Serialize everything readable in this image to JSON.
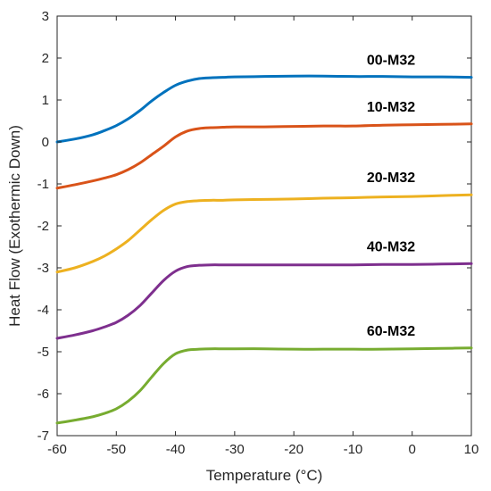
{
  "chart_data": {
    "type": "line",
    "title": "",
    "xlabel": "Temperature (°C)",
    "ylabel": "Heat Flow (Exothermic Down)",
    "xlim": [
      -60,
      10
    ],
    "ylim": [
      -7,
      3
    ],
    "xticks": [
      -60,
      -50,
      -40,
      -30,
      -20,
      -10,
      0,
      10
    ],
    "yticks": [
      -7,
      -6,
      -5,
      -4,
      -3,
      -2,
      -1,
      0,
      1,
      2,
      3
    ],
    "grid": false,
    "legend": "none (series labeled directly on plot)",
    "series": [
      {
        "name": "00-M32",
        "color": "#0072BD",
        "x": [
          -60,
          -57,
          -54,
          -52,
          -50,
          -48,
          -46,
          -44,
          -42,
          -40,
          -38,
          -36,
          -34,
          -32,
          -30,
          -25,
          -20,
          -15,
          -10,
          -5,
          0,
          5,
          10
        ],
        "y": [
          0.0,
          0.07,
          0.17,
          0.27,
          0.39,
          0.55,
          0.75,
          0.98,
          1.18,
          1.35,
          1.45,
          1.51,
          1.53,
          1.54,
          1.55,
          1.56,
          1.57,
          1.57,
          1.56,
          1.56,
          1.55,
          1.55,
          1.54
        ]
      },
      {
        "name": "10-M32",
        "color": "#D95319",
        "x": [
          -60,
          -57,
          -54,
          -52,
          -50,
          -48,
          -46,
          -44,
          -42,
          -40,
          -38,
          -36,
          -34,
          -32,
          -30,
          -25,
          -20,
          -15,
          -10,
          -5,
          0,
          5,
          10
        ],
        "y": [
          -1.1,
          -1.02,
          -0.93,
          -0.86,
          -0.78,
          -0.66,
          -0.5,
          -0.3,
          -0.1,
          0.12,
          0.26,
          0.32,
          0.34,
          0.35,
          0.36,
          0.36,
          0.37,
          0.38,
          0.38,
          0.4,
          0.41,
          0.42,
          0.43
        ]
      },
      {
        "name": "20-M32",
        "color": "#EDB120",
        "x": [
          -60,
          -57,
          -54,
          -52,
          -50,
          -48,
          -46,
          -44,
          -42,
          -40,
          -38,
          -36,
          -34,
          -32,
          -30,
          -25,
          -20,
          -15,
          -10,
          -5,
          0,
          5,
          10
        ],
        "y": [
          -3.1,
          -3.0,
          -2.85,
          -2.72,
          -2.55,
          -2.35,
          -2.1,
          -1.85,
          -1.63,
          -1.48,
          -1.42,
          -1.4,
          -1.39,
          -1.39,
          -1.38,
          -1.37,
          -1.36,
          -1.34,
          -1.33,
          -1.31,
          -1.3,
          -1.28,
          -1.26
        ]
      },
      {
        "name": "40-M32",
        "color": "#7E2F8E",
        "x": [
          -60,
          -57,
          -54,
          -52,
          -50,
          -48,
          -46,
          -44,
          -42,
          -40,
          -38,
          -36,
          -34,
          -32,
          -30,
          -25,
          -20,
          -15,
          -10,
          -5,
          0,
          5,
          10
        ],
        "y": [
          -4.68,
          -4.6,
          -4.5,
          -4.41,
          -4.3,
          -4.13,
          -3.9,
          -3.6,
          -3.3,
          -3.08,
          -2.97,
          -2.94,
          -2.93,
          -2.93,
          -2.93,
          -2.93,
          -2.93,
          -2.93,
          -2.93,
          -2.92,
          -2.92,
          -2.91,
          -2.9
        ]
      },
      {
        "name": "60-M32",
        "color": "#77AC30",
        "x": [
          -60,
          -57,
          -54,
          -52,
          -50,
          -48,
          -46,
          -44,
          -42,
          -40,
          -38,
          -36,
          -34,
          -32,
          -30,
          -25,
          -20,
          -15,
          -10,
          -5,
          0,
          5,
          10
        ],
        "y": [
          -6.7,
          -6.63,
          -6.55,
          -6.47,
          -6.36,
          -6.18,
          -5.93,
          -5.6,
          -5.28,
          -5.05,
          -4.96,
          -4.94,
          -4.93,
          -4.93,
          -4.93,
          -4.93,
          -4.94,
          -4.94,
          -4.94,
          -4.94,
          -4.93,
          -4.92,
          -4.91
        ]
      }
    ]
  }
}
